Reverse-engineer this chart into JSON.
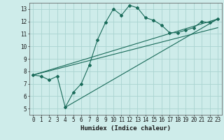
{
  "xlabel": "Humidex (Indice chaleur)",
  "ylabel": "",
  "bg_color": "#ceecea",
  "grid_color": "#aad4d0",
  "line_color": "#1a6b5a",
  "xlim": [
    -0.5,
    23.5
  ],
  "ylim": [
    4.5,
    13.5
  ],
  "xticks": [
    0,
    1,
    2,
    3,
    4,
    5,
    6,
    7,
    8,
    9,
    10,
    11,
    12,
    13,
    14,
    15,
    16,
    17,
    18,
    19,
    20,
    21,
    22,
    23
  ],
  "yticks": [
    5,
    6,
    7,
    8,
    9,
    10,
    11,
    12,
    13
  ],
  "main_x": [
    0,
    1,
    2,
    3,
    4,
    5,
    6,
    7,
    8,
    9,
    10,
    11,
    12,
    13,
    14,
    15,
    16,
    17,
    18,
    19,
    20,
    21,
    22,
    23
  ],
  "main_y": [
    7.7,
    7.6,
    7.3,
    7.6,
    5.1,
    6.3,
    7.0,
    8.5,
    10.5,
    11.9,
    13.0,
    12.5,
    13.3,
    13.1,
    12.3,
    12.1,
    11.7,
    11.1,
    11.1,
    11.3,
    11.5,
    12.0,
    11.9,
    12.2
  ],
  "line2_x": [
    0,
    23
  ],
  "line2_y": [
    7.7,
    11.5
  ],
  "line3_x": [
    0,
    23
  ],
  "line3_y": [
    7.7,
    12.2
  ],
  "line4_x": [
    4,
    23
  ],
  "line4_y": [
    5.1,
    12.2
  ]
}
